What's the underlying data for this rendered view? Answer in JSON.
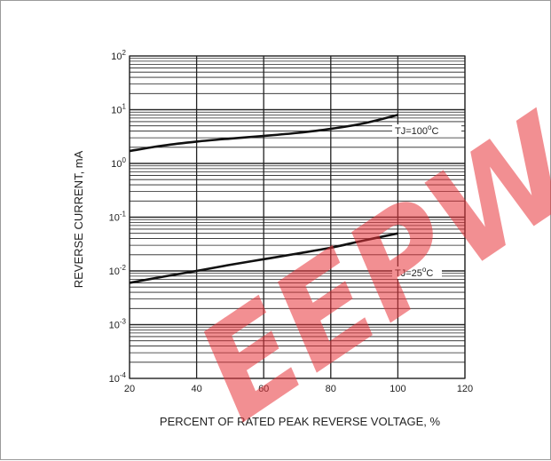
{
  "chart_data": {
    "type": "line",
    "xlabel": "PERCENT OF RATED PEAK REVERSE VOLTAGE, %",
    "ylabel": "REVERSE CURRENT, mA",
    "xlim": [
      20,
      120
    ],
    "ylim": [
      0.0001,
      100
    ],
    "yscale": "log",
    "grid": true,
    "x_ticks": [
      "20",
      "40",
      "60",
      "80",
      "100",
      "120"
    ],
    "y_ticks": [
      {
        "base": "10",
        "exp": "-4",
        "value": 0.0001
      },
      {
        "base": "10",
        "exp": "-3",
        "value": 0.001
      },
      {
        "base": "10",
        "exp": "-2",
        "value": 0.01
      },
      {
        "base": "10",
        "exp": "-1",
        "value": 0.1
      },
      {
        "base": "10",
        "exp": "0",
        "value": 1
      },
      {
        "base": "10",
        "exp": "1",
        "value": 10
      },
      {
        "base": "10",
        "exp": "2",
        "value": 100
      }
    ],
    "series": [
      {
        "name": "TJ=100°C",
        "x": [
          20,
          30,
          40,
          50,
          60,
          70,
          80,
          90,
          100
        ],
        "y": [
          1.7,
          2.15,
          2.55,
          2.9,
          3.25,
          3.7,
          4.4,
          5.6,
          8.0
        ]
      },
      {
        "name": "TJ=25°C",
        "x": [
          20,
          30,
          40,
          50,
          60,
          70,
          80,
          90,
          100
        ],
        "y": [
          0.006,
          0.0078,
          0.01,
          0.013,
          0.0165,
          0.021,
          0.027,
          0.037,
          0.05
        ]
      }
    ],
    "annotations": [
      {
        "text_main": "TJ=100",
        "text_sup": "o",
        "text_end": "C",
        "series": "TJ=100°C"
      },
      {
        "text_main": "TJ=25",
        "text_sup": "o",
        "text_end": "C",
        "series": "TJ=25°C"
      }
    ]
  },
  "watermark": {
    "text": "EEPW",
    "color": "#e8343a"
  },
  "colors": {
    "curve": "#111111",
    "grid": "#222222",
    "frame": "#9a9a9a"
  }
}
